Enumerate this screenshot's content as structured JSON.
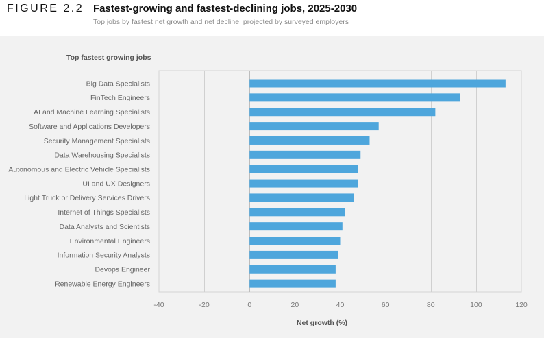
{
  "header": {
    "figure_label": "FIGURE 2.2",
    "title": "Fastest-growing and fastest-declining jobs, 2025-2030",
    "subtitle": "Top jobs by fastest net growth and net decline, projected by surveyed employers"
  },
  "chart_data": {
    "type": "bar",
    "orientation": "horizontal",
    "section_title": "Top fastest growing jobs",
    "xlabel": "Net growth (%)",
    "xlim": [
      -40,
      120
    ],
    "xticks": [
      -40,
      -20,
      0,
      20,
      40,
      60,
      80,
      100,
      120
    ],
    "bar_color": "#4ea6dc",
    "categories": [
      "Big Data Specialists",
      "FinTech Engineers",
      "AI and Machine Learning Specialists",
      "Software and Applications Developers",
      "Security Management Specialists",
      "Data Warehousing Specialists",
      "Autonomous and Electric Vehicle Specialists",
      "UI and UX Designers",
      "Light Truck or Delivery Services Drivers",
      "Internet of Things Specialists",
      "Data Analysts and Scientists",
      "Environmental Engineers",
      "Information Security Analysts",
      "Devops Engineer",
      "Renewable Energy Engineers"
    ],
    "values": [
      113,
      93,
      82,
      57,
      53,
      49,
      48,
      48,
      46,
      42,
      41,
      40,
      39,
      38,
      38
    ]
  }
}
